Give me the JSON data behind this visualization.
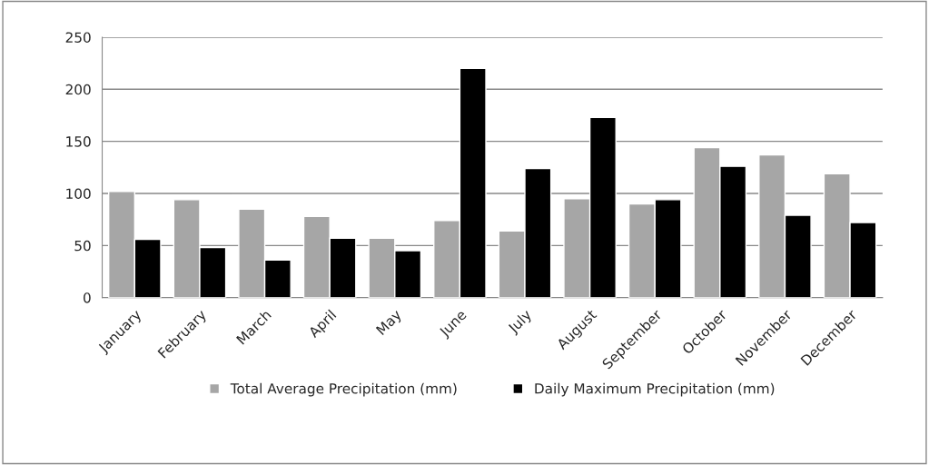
{
  "chart_data": {
    "type": "bar",
    "categories": [
      "January",
      "February",
      "March",
      "April",
      "May",
      "June",
      "July",
      "August",
      "September",
      "October",
      "November",
      "December"
    ],
    "series": [
      {
        "name": "Total Average Precipitation (mm)",
        "color": "#a6a6a6",
        "values": [
          102,
          94,
          85,
          78,
          57,
          74,
          64,
          95,
          90,
          144,
          137,
          119
        ]
      },
      {
        "name": "Daily Maximum Precipitation (mm)",
        "color": "#000000",
        "values": [
          56,
          48,
          36,
          57,
          45,
          220,
          124,
          173,
          94,
          126,
          79,
          72
        ]
      }
    ],
    "ylim": [
      0,
      250
    ],
    "yticks": [
      0,
      50,
      100,
      150,
      200,
      250
    ],
    "grid": "y",
    "legend": "bottom"
  }
}
